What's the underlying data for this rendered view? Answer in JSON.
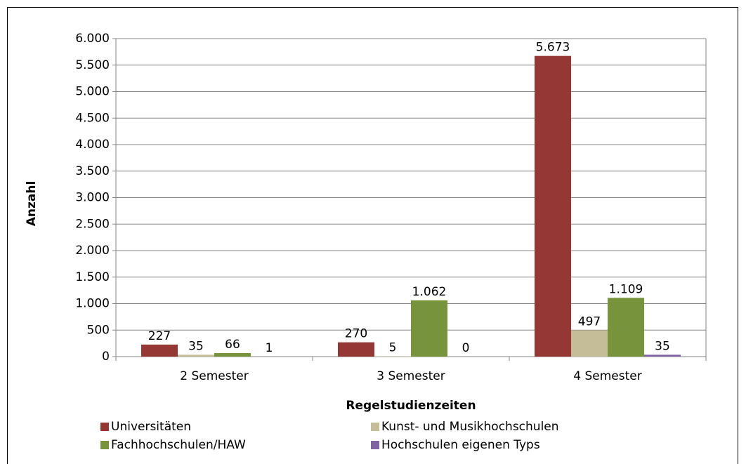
{
  "chart_data": {
    "type": "bar",
    "x_label": "Regelstudienzeiten",
    "y_label": "Anzahl",
    "categories": [
      "2 Semester",
      "3 Semester",
      "4 Semester"
    ],
    "series": [
      {
        "name": "Universitäten",
        "color": "#953735",
        "values": [
          227,
          270,
          5673
        ],
        "value_labels": [
          "227",
          "270",
          "5.673"
        ]
      },
      {
        "name": "Kunst- und Musikhochschulen",
        "color": "#c4bd97",
        "values": [
          35,
          5,
          497
        ]
      },
      {
        "name": "Fachhochschulen/HAW",
        "color": "#77933c",
        "values": [
          66,
          1062,
          1109
        ],
        "value_labels": [
          "66",
          "1.062",
          "1.109"
        ]
      },
      {
        "name": "Hochschulen eigenen Typs",
        "color": "#8064a2",
        "values": [
          1,
          0,
          35
        ]
      }
    ],
    "ylim": [
      0,
      6000
    ],
    "yticks": [
      0,
      500,
      {
        "value": 1000,
        "label": "1.000"
      },
      {
        "value": 1500,
        "label": "1.500"
      },
      {
        "value": 2000,
        "label": "2.000"
      },
      {
        "value": 2500,
        "label": "2.500"
      },
      {
        "value": 3000,
        "label": "3.000"
      },
      {
        "value": 3500,
        "label": "3.500"
      },
      {
        "value": 4000,
        "label": "4.000"
      },
      {
        "value": 4500,
        "label": "4.500"
      },
      {
        "value": 5000,
        "label": "5.000"
      },
      {
        "value": 5500,
        "label": "5.500"
      },
      {
        "value": 6000,
        "label": "6.000"
      }
    ],
    "grid": true,
    "legend": "bottom"
  }
}
